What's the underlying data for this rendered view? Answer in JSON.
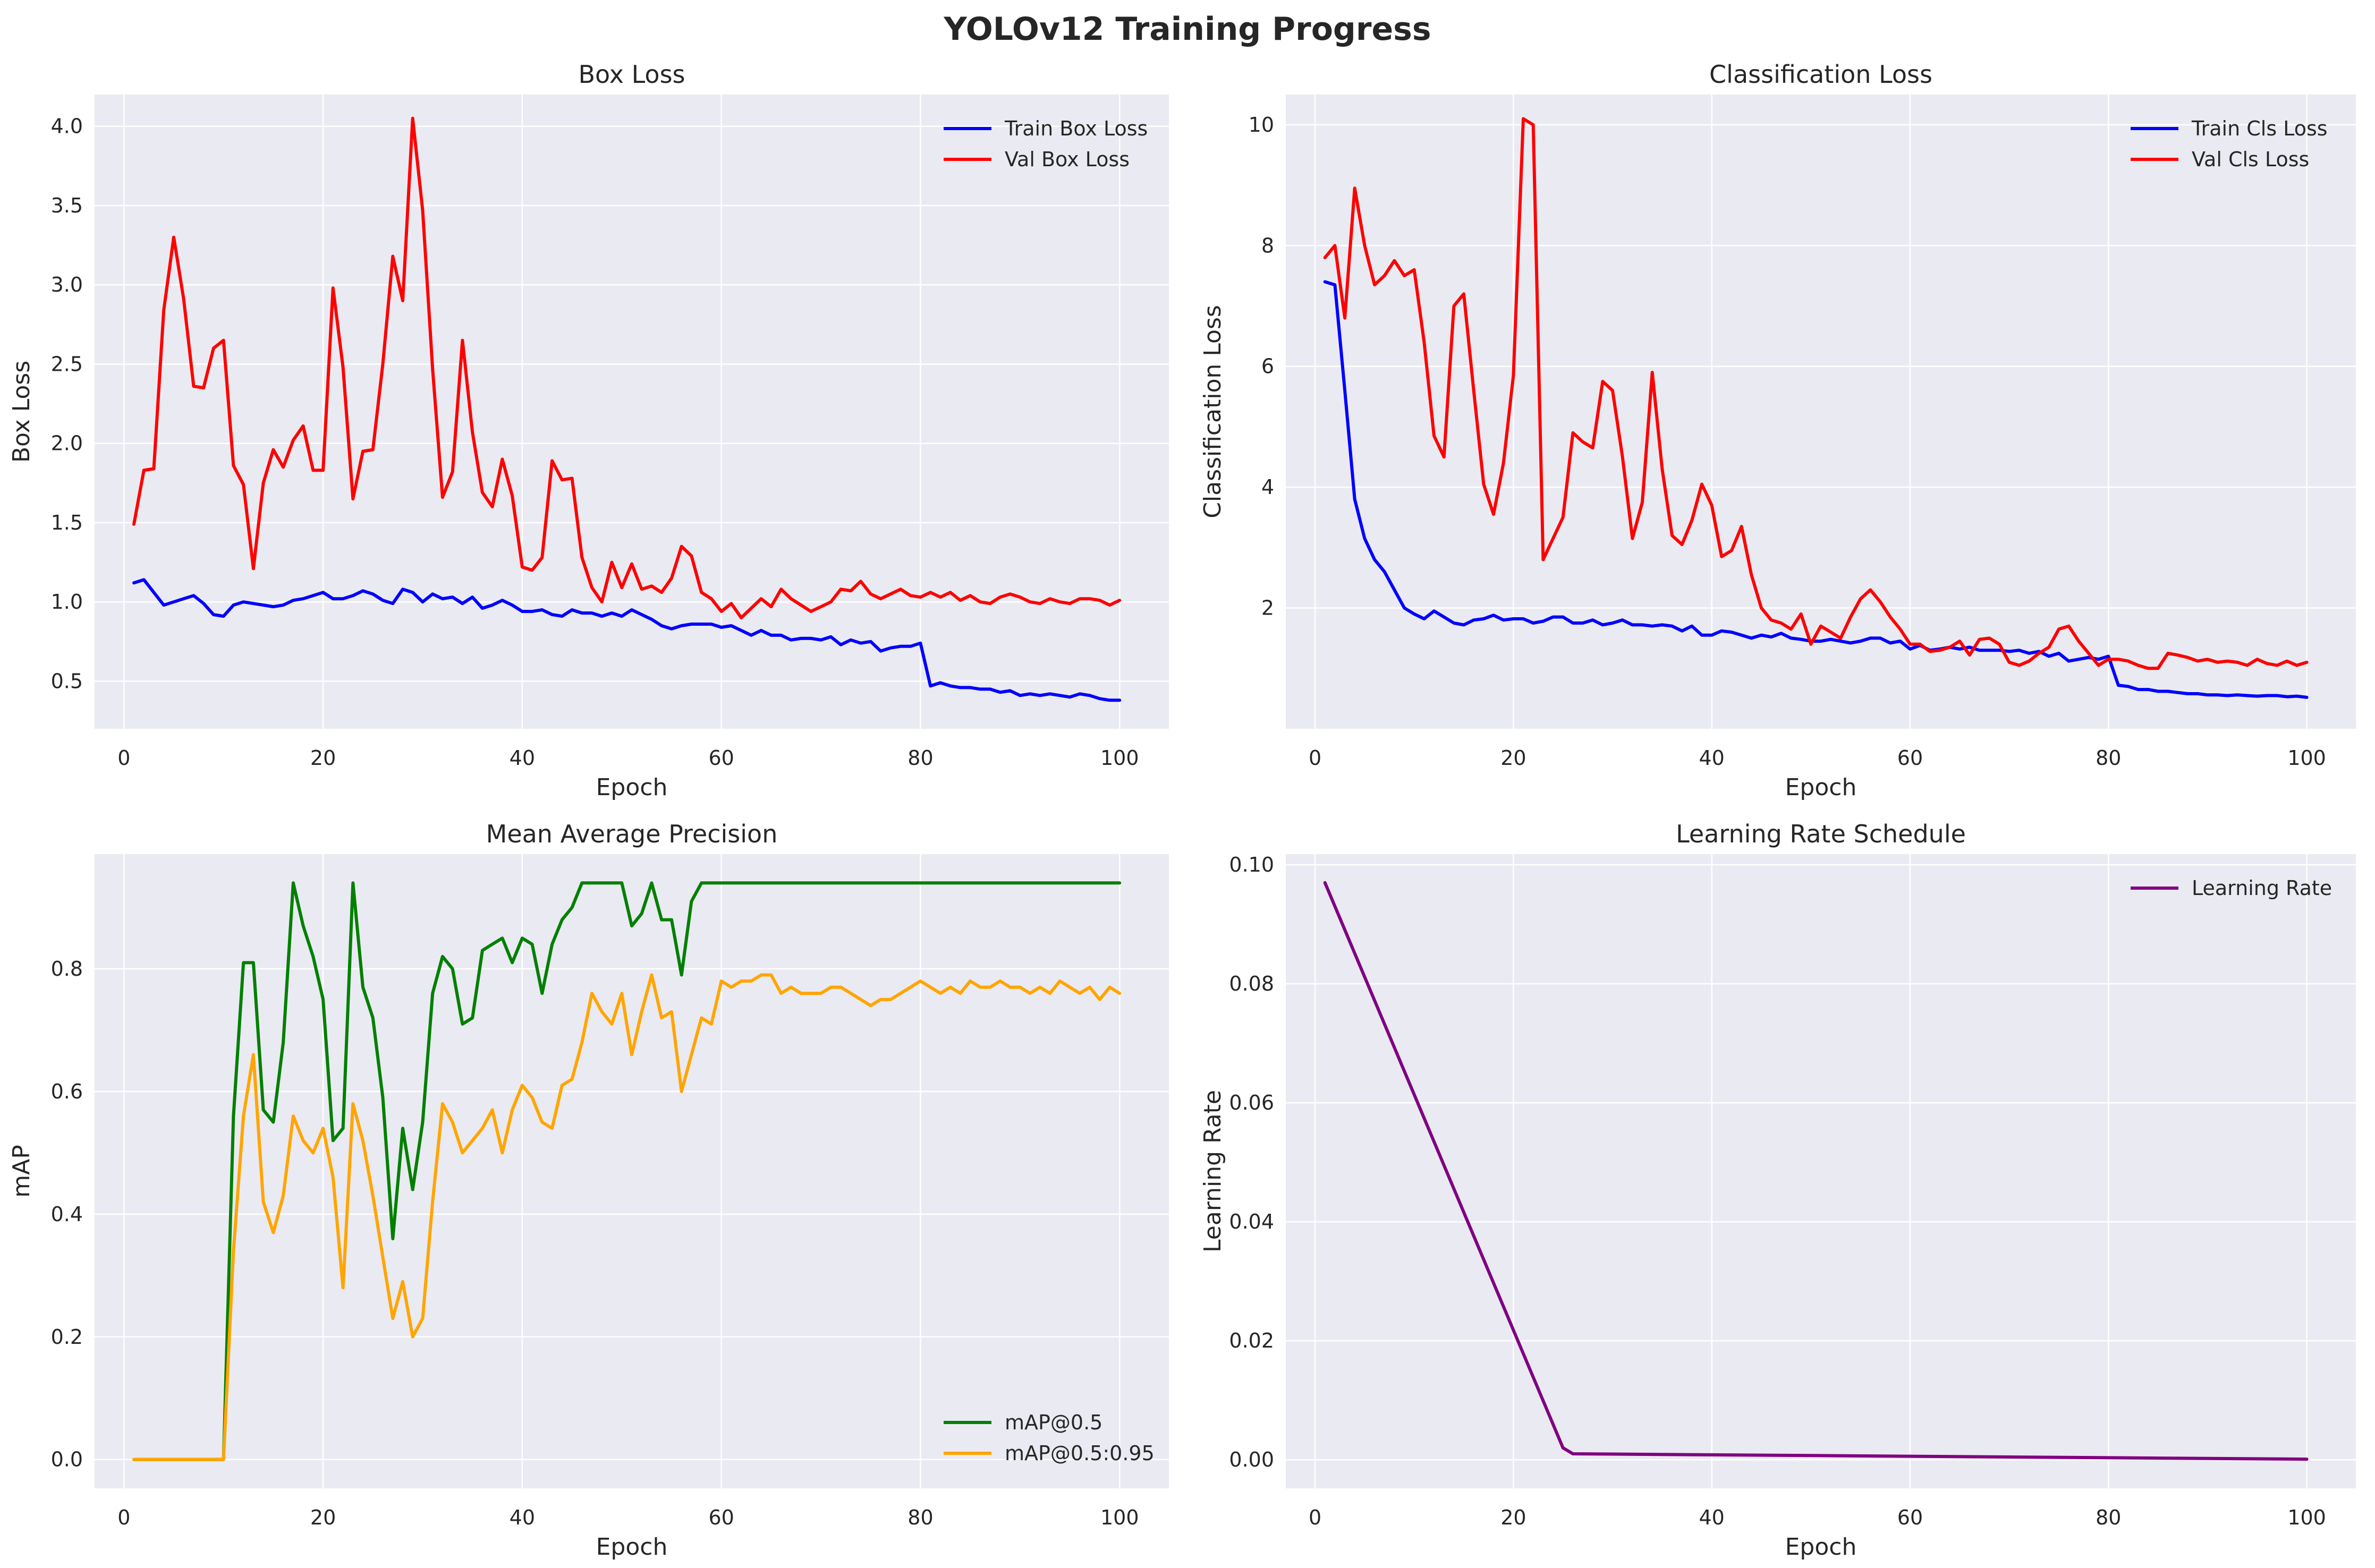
{
  "figure_title": "YOLOv12 Training Progress",
  "colors": {
    "train_box": "#0000ff",
    "val_box": "#ff0000",
    "train_cls": "#0000ff",
    "val_cls": "#ff0000",
    "map50": "#008000",
    "map5095": "#ffa500",
    "lr": "#800080",
    "axes_bg": "#eaeaf2",
    "grid": "#ffffff"
  },
  "chart_data": [
    {
      "type": "line",
      "title": "Box Loss",
      "xlabel": "Epoch",
      "ylabel": "Box Loss",
      "xlim": [
        -2.95,
        104.95
      ],
      "ylim": [
        0.2,
        4.2
      ],
      "xticks": [
        0,
        20,
        40,
        60,
        80,
        100
      ],
      "yticks": [
        0.5,
        1.0,
        1.5,
        2.0,
        2.5,
        3.0,
        3.5,
        4.0
      ],
      "ytick_labels": [
        "0.5",
        "1.0",
        "1.5",
        "2.0",
        "2.5",
        "3.0",
        "3.5",
        "4.0"
      ],
      "grid": true,
      "legend_position": "upper right",
      "series": [
        {
          "name": "Train Box Loss",
          "color_key": "train_box",
          "values": [
            1.12,
            1.14,
            1.06,
            0.98,
            1.0,
            1.02,
            1.04,
            0.99,
            0.92,
            0.91,
            0.98,
            1.0,
            0.99,
            0.98,
            0.97,
            0.98,
            1.01,
            1.02,
            1.04,
            1.06,
            1.02,
            1.02,
            1.04,
            1.07,
            1.05,
            1.01,
            0.99,
            1.08,
            1.06,
            1.0,
            1.05,
            1.02,
            1.03,
            0.99,
            1.03,
            0.96,
            0.98,
            1.01,
            0.98,
            0.94,
            0.94,
            0.95,
            0.92,
            0.91,
            0.95,
            0.93,
            0.93,
            0.91,
            0.93,
            0.91,
            0.95,
            0.92,
            0.89,
            0.85,
            0.83,
            0.85,
            0.86,
            0.86,
            0.86,
            0.84,
            0.85,
            0.82,
            0.79,
            0.82,
            0.79,
            0.79,
            0.76,
            0.77,
            0.77,
            0.76,
            0.78,
            0.73,
            0.76,
            0.74,
            0.75,
            0.69,
            0.71,
            0.72,
            0.72,
            0.74,
            0.47,
            0.49,
            0.47,
            0.46,
            0.46,
            0.45,
            0.45,
            0.43,
            0.44,
            0.41,
            0.42,
            0.41,
            0.42,
            0.41,
            0.4,
            0.42,
            0.41,
            0.39,
            0.38,
            0.38
          ]
        },
        {
          "name": "Val Box Loss",
          "color_key": "val_box",
          "values": [
            1.49,
            1.83,
            1.84,
            2.84,
            3.3,
            2.91,
            2.36,
            2.35,
            2.6,
            2.65,
            1.86,
            1.74,
            1.21,
            1.75,
            1.96,
            1.85,
            2.02,
            2.11,
            1.83,
            1.83,
            2.98,
            2.48,
            1.65,
            1.95,
            1.96,
            2.5,
            3.18,
            2.9,
            4.05,
            3.47,
            2.47,
            1.66,
            1.82,
            2.65,
            2.07,
            1.69,
            1.6,
            1.9,
            1.67,
            1.22,
            1.2,
            1.28,
            1.89,
            1.77,
            1.78,
            1.28,
            1.09,
            1.0,
            1.25,
            1.09,
            1.24,
            1.08,
            1.1,
            1.06,
            1.15,
            1.35,
            1.29,
            1.06,
            1.02,
            0.94,
            0.99,
            0.9,
            0.96,
            1.02,
            0.97,
            1.08,
            1.02,
            0.98,
            0.94,
            0.97,
            1.0,
            1.08,
            1.07,
            1.13,
            1.05,
            1.02,
            1.05,
            1.08,
            1.04,
            1.03,
            1.06,
            1.03,
            1.06,
            1.01,
            1.04,
            1.0,
            0.99,
            1.03,
            1.05,
            1.03,
            1.0,
            0.99,
            1.02,
            1.0,
            0.99,
            1.02,
            1.02,
            1.01,
            0.98,
            1.01
          ]
        }
      ]
    },
    {
      "type": "line",
      "title": "Classification Loss",
      "xlabel": "Epoch",
      "ylabel": "Classification Loss",
      "xlim": [
        -2.95,
        104.95
      ],
      "ylim": [
        0.0,
        10.5
      ],
      "xticks": [
        0,
        20,
        40,
        60,
        80,
        100
      ],
      "yticks": [
        2,
        4,
        6,
        8,
        10
      ],
      "ytick_labels": [
        "2",
        "4",
        "6",
        "8",
        "10"
      ],
      "grid": true,
      "legend_position": "upper right",
      "series": [
        {
          "name": "Train Cls Loss",
          "color_key": "train_cls",
          "values": [
            7.4,
            7.35,
            5.6,
            3.8,
            3.15,
            2.8,
            2.6,
            2.3,
            2.0,
            1.9,
            1.82,
            1.95,
            1.85,
            1.75,
            1.72,
            1.8,
            1.82,
            1.88,
            1.8,
            1.82,
            1.82,
            1.75,
            1.78,
            1.85,
            1.85,
            1.75,
            1.75,
            1.8,
            1.72,
            1.75,
            1.8,
            1.72,
            1.72,
            1.7,
            1.72,
            1.7,
            1.62,
            1.7,
            1.55,
            1.55,
            1.62,
            1.6,
            1.55,
            1.5,
            1.55,
            1.52,
            1.58,
            1.5,
            1.48,
            1.45,
            1.45,
            1.48,
            1.45,
            1.42,
            1.45,
            1.5,
            1.5,
            1.42,
            1.45,
            1.32,
            1.38,
            1.3,
            1.32,
            1.35,
            1.32,
            1.35,
            1.3,
            1.3,
            1.3,
            1.28,
            1.3,
            1.25,
            1.28,
            1.2,
            1.25,
            1.12,
            1.15,
            1.18,
            1.15,
            1.2,
            0.72,
            0.7,
            0.65,
            0.65,
            0.62,
            0.62,
            0.6,
            0.58,
            0.58,
            0.56,
            0.56,
            0.55,
            0.56,
            0.55,
            0.54,
            0.55,
            0.55,
            0.53,
            0.54,
            0.52
          ]
        },
        {
          "name": "Val Cls Loss",
          "color_key": "val_cls",
          "values": [
            7.8,
            8.0,
            6.8,
            8.95,
            8.0,
            7.35,
            7.5,
            7.75,
            7.5,
            7.6,
            6.4,
            4.85,
            4.5,
            7.0,
            7.2,
            5.6,
            4.05,
            3.55,
            4.4,
            5.85,
            10.1,
            10.0,
            2.8,
            3.15,
            3.5,
            4.9,
            4.75,
            4.65,
            5.75,
            5.6,
            4.5,
            3.15,
            3.75,
            5.9,
            4.3,
            3.2,
            3.05,
            3.45,
            4.05,
            3.7,
            2.85,
            2.95,
            3.35,
            2.55,
            2.0,
            1.8,
            1.75,
            1.65,
            1.9,
            1.4,
            1.7,
            1.6,
            1.5,
            1.85,
            2.15,
            2.3,
            2.1,
            1.85,
            1.65,
            1.4,
            1.4,
            1.28,
            1.3,
            1.35,
            1.45,
            1.22,
            1.48,
            1.5,
            1.4,
            1.1,
            1.05,
            1.12,
            1.25,
            1.35,
            1.65,
            1.7,
            1.45,
            1.25,
            1.05,
            1.15,
            1.15,
            1.12,
            1.05,
            1.0,
            1.0,
            1.25,
            1.22,
            1.18,
            1.12,
            1.15,
            1.1,
            1.12,
            1.1,
            1.05,
            1.15,
            1.08,
            1.05,
            1.12,
            1.05,
            1.1
          ]
        }
      ]
    },
    {
      "type": "line",
      "title": "Mean Average Precision",
      "xlabel": "Epoch",
      "ylabel": "mAP",
      "xlim": [
        -2.95,
        104.95
      ],
      "ylim": [
        -0.047,
        0.987
      ],
      "xticks": [
        0,
        20,
        40,
        60,
        80,
        100
      ],
      "yticks": [
        0.0,
        0.2,
        0.4,
        0.6,
        0.8
      ],
      "ytick_labels": [
        "0.0",
        "0.2",
        "0.4",
        "0.6",
        "0.8"
      ],
      "grid": true,
      "legend_position": "lower right",
      "series": [
        {
          "name": "mAP@0.5",
          "color_key": "map50",
          "values": [
            0,
            0,
            0,
            0,
            0,
            0,
            0,
            0,
            0,
            0,
            0.56,
            0.81,
            0.81,
            0.57,
            0.55,
            0.68,
            0.94,
            0.87,
            0.82,
            0.75,
            0.52,
            0.54,
            0.94,
            0.77,
            0.72,
            0.59,
            0.36,
            0.54,
            0.44,
            0.55,
            0.76,
            0.82,
            0.8,
            0.71,
            0.72,
            0.83,
            0.84,
            0.85,
            0.81,
            0.85,
            0.84,
            0.76,
            0.84,
            0.88,
            0.9,
            0.94,
            0.94,
            0.94,
            0.94,
            0.94,
            0.87,
            0.89,
            0.94,
            0.88,
            0.88,
            0.79,
            0.91,
            0.94,
            0.94,
            0.94,
            0.94,
            0.94,
            0.94,
            0.94,
            0.94,
            0.94,
            0.94,
            0.94,
            0.94,
            0.94,
            0.94,
            0.94,
            0.94,
            0.94,
            0.94,
            0.94,
            0.94,
            0.94,
            0.94,
            0.94,
            0.94,
            0.94,
            0.94,
            0.94,
            0.94,
            0.94,
            0.94,
            0.94,
            0.94,
            0.94,
            0.94,
            0.94,
            0.94,
            0.94,
            0.94,
            0.94,
            0.94,
            0.94,
            0.94,
            0.94
          ]
        },
        {
          "name": "mAP@0.5:0.95",
          "color_key": "map5095",
          "values": [
            0,
            0,
            0,
            0,
            0,
            0,
            0,
            0,
            0,
            0,
            0.34,
            0.56,
            0.66,
            0.42,
            0.37,
            0.43,
            0.56,
            0.52,
            0.5,
            0.54,
            0.46,
            0.28,
            0.58,
            0.52,
            0.43,
            0.33,
            0.23,
            0.29,
            0.2,
            0.23,
            0.42,
            0.58,
            0.55,
            0.5,
            0.52,
            0.54,
            0.57,
            0.5,
            0.57,
            0.61,
            0.59,
            0.55,
            0.54,
            0.61,
            0.62,
            0.68,
            0.76,
            0.73,
            0.71,
            0.76,
            0.66,
            0.73,
            0.79,
            0.72,
            0.73,
            0.6,
            0.66,
            0.72,
            0.71,
            0.78,
            0.77,
            0.78,
            0.78,
            0.79,
            0.79,
            0.76,
            0.77,
            0.76,
            0.76,
            0.76,
            0.77,
            0.77,
            0.76,
            0.75,
            0.74,
            0.75,
            0.75,
            0.76,
            0.77,
            0.78,
            0.77,
            0.76,
            0.77,
            0.76,
            0.78,
            0.77,
            0.77,
            0.78,
            0.77,
            0.77,
            0.76,
            0.77,
            0.76,
            0.78,
            0.77,
            0.76,
            0.77,
            0.75,
            0.77,
            0.76
          ]
        }
      ]
    },
    {
      "type": "line",
      "title": "Learning Rate Schedule",
      "xlabel": "Epoch",
      "ylabel": "Learning Rate",
      "xlim": [
        -2.95,
        104.95
      ],
      "ylim": [
        -0.0048,
        0.1018
      ],
      "xticks": [
        0,
        20,
        40,
        60,
        80,
        100
      ],
      "yticks": [
        0.0,
        0.02,
        0.04,
        0.06,
        0.08,
        0.1
      ],
      "ytick_labels": [
        "0.00",
        "0.02",
        "0.04",
        "0.06",
        "0.08",
        "0.10"
      ],
      "grid": true,
      "legend_position": "upper right",
      "series": [
        {
          "name": "Learning Rate",
          "color_key": "lr",
          "x": [
            1,
            25,
            26,
            100
          ],
          "values": [
            0.097,
            0.002,
            0.001,
            0.0001
          ]
        }
      ]
    }
  ]
}
